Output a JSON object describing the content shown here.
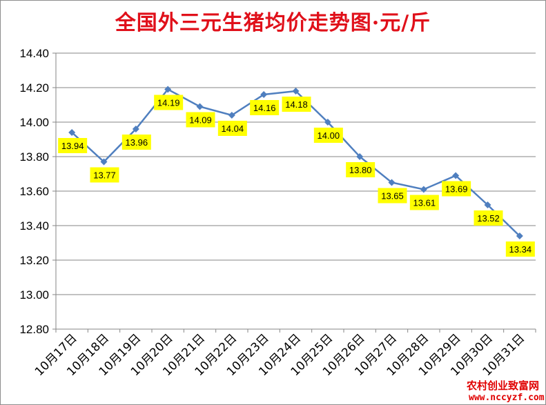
{
  "chart_data": {
    "type": "line",
    "title": "全国外三元生猪均价走势图·元/斤",
    "categories": [
      "10月17日",
      "10月18日",
      "10月19日",
      "10月20日",
      "10月21日",
      "10月22日",
      "10月23日",
      "10月24日",
      "10月25日",
      "10月26日",
      "10月27日",
      "10月28日",
      "10月29日",
      "10月30日",
      "10月31日"
    ],
    "values": [
      13.94,
      13.77,
      13.96,
      14.19,
      14.09,
      14.04,
      14.16,
      14.18,
      14.0,
      13.8,
      13.65,
      13.61,
      13.69,
      13.52,
      13.34
    ],
    "data_labels": [
      "13.94",
      "13.77",
      "13.96",
      "14.19",
      "14.09",
      "14.04",
      "14.16",
      "14.18",
      "14.00",
      "13.80",
      "13.65",
      "13.61",
      "13.69",
      "13.52",
      "13.34"
    ],
    "yticks": [
      "12.80",
      "13.00",
      "13.20",
      "13.40",
      "13.60",
      "13.80",
      "14.00",
      "14.20",
      "14.40"
    ],
    "ylim": [
      12.8,
      14.4
    ],
    "grid": true,
    "line_color": "#4f7fbf",
    "label_bg": "#ffff00"
  },
  "watermark": {
    "line1": "农村创业致富网",
    "line2": "www.nccyzf.com"
  }
}
